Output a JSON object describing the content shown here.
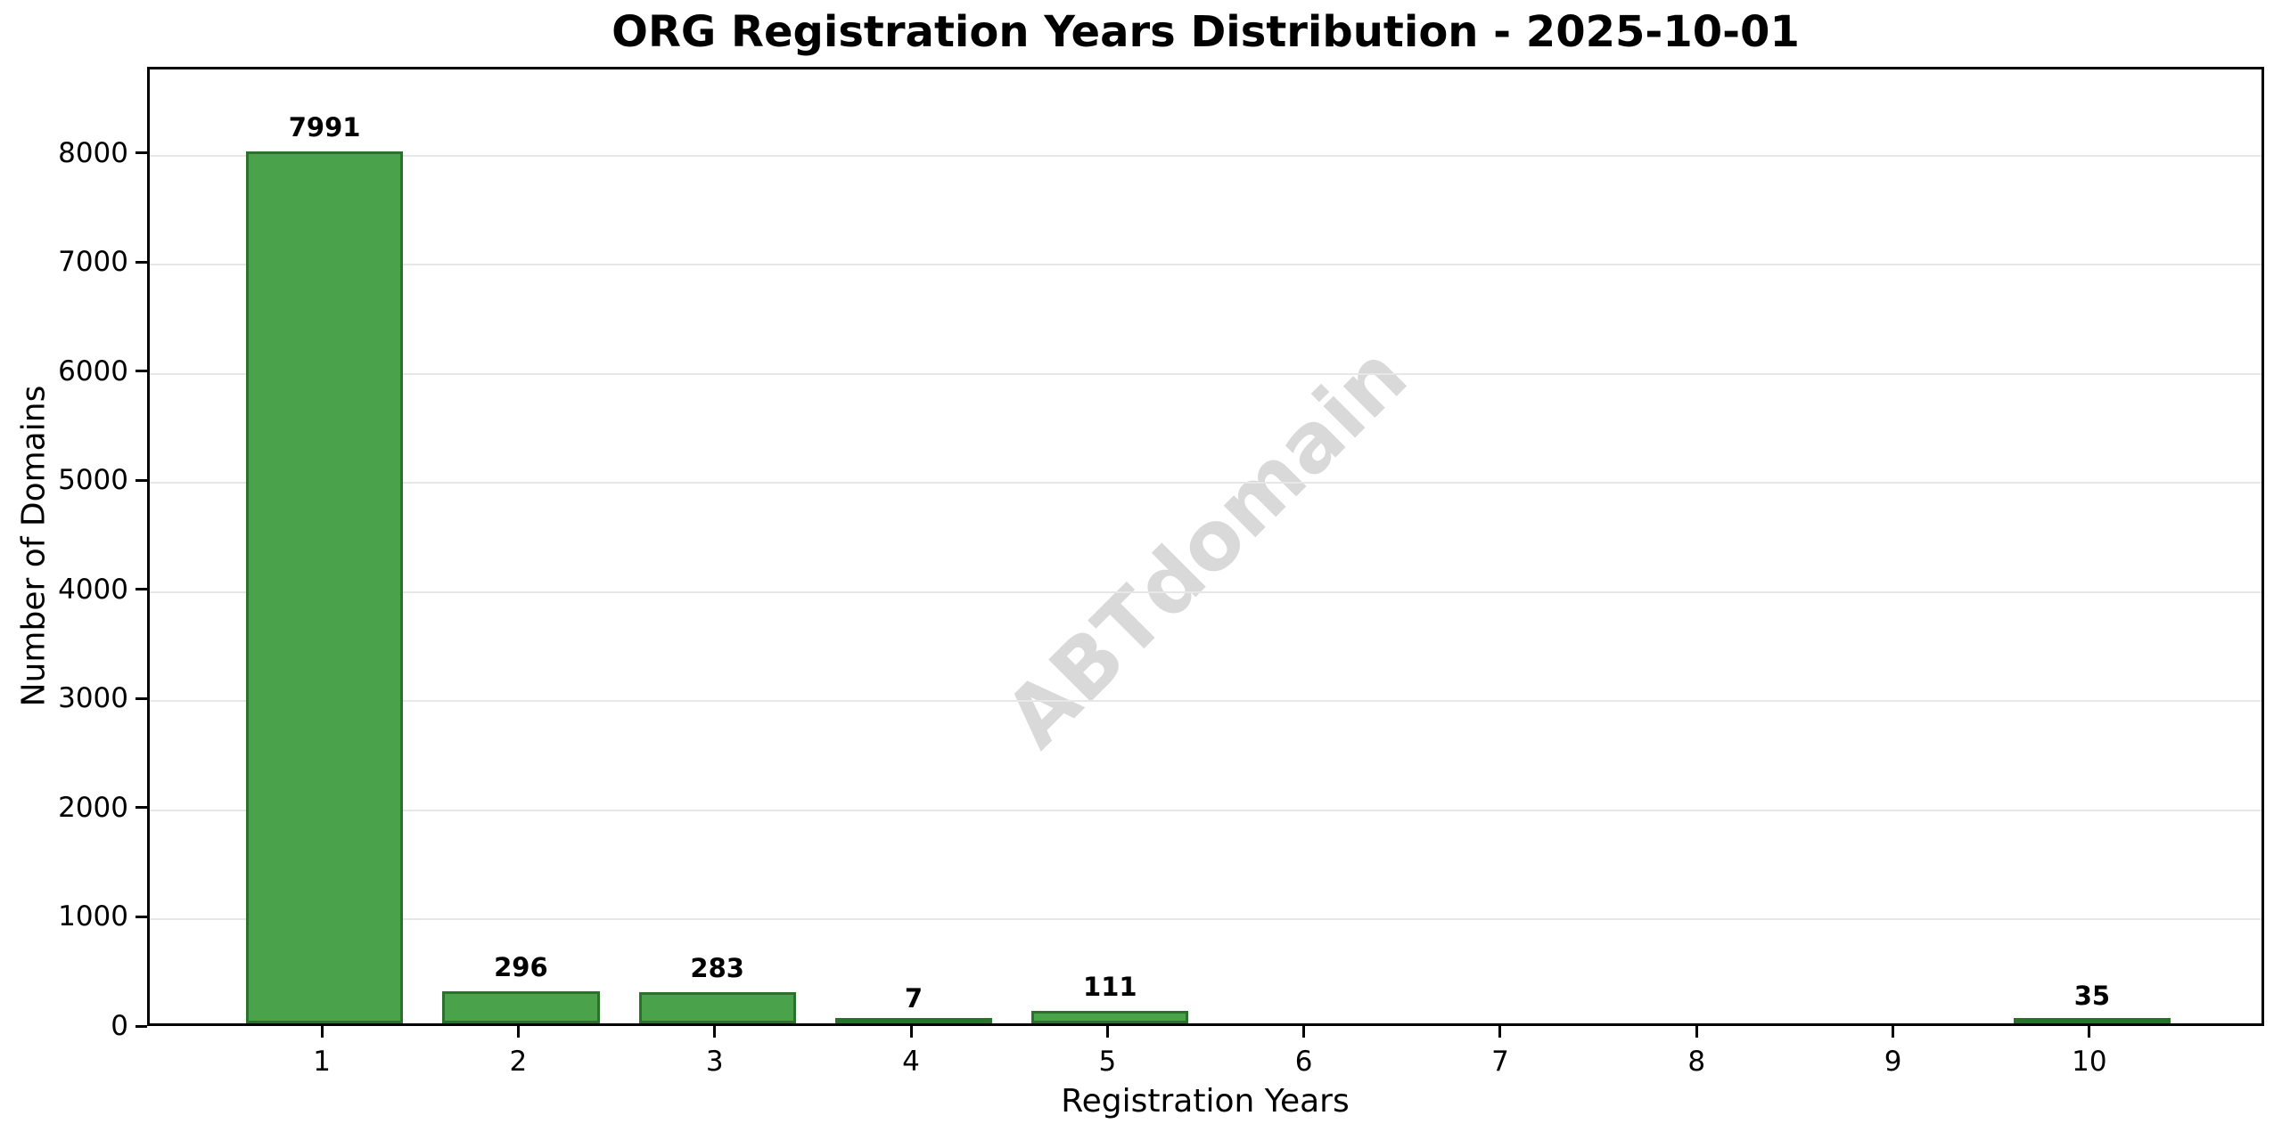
{
  "chart_data": {
    "type": "bar",
    "title": "ORG Registration Years Distribution - 2025-10-01",
    "xlabel": "Registration Years",
    "ylabel": "Number of Domains",
    "categories": [
      "1",
      "2",
      "3",
      "4",
      "5",
      "6",
      "7",
      "8",
      "9",
      "10"
    ],
    "values": [
      7991,
      296,
      283,
      7,
      111,
      0,
      0,
      0,
      0,
      35
    ],
    "bar_value_labels": [
      "7991",
      "296",
      "283",
      "7",
      "111",
      "",
      "",
      "",
      "",
      "35"
    ],
    "yticks": [
      0,
      1000,
      2000,
      3000,
      4000,
      5000,
      6000,
      7000,
      8000
    ],
    "ylim": [
      0,
      8790
    ],
    "xlim": [
      0.11,
      10.89
    ],
    "bar_width": 0.8,
    "grid": "horizontal-only",
    "legend": "none",
    "watermark": "ABTdomain",
    "colors": {
      "bar_fill": "#4aa34a",
      "bar_edge": "#2a712b",
      "gridline": "#e7e7e7",
      "axis": "#000000",
      "text": "#000000",
      "watermark": "#d9d9d9",
      "background": "#ffffff"
    }
  }
}
